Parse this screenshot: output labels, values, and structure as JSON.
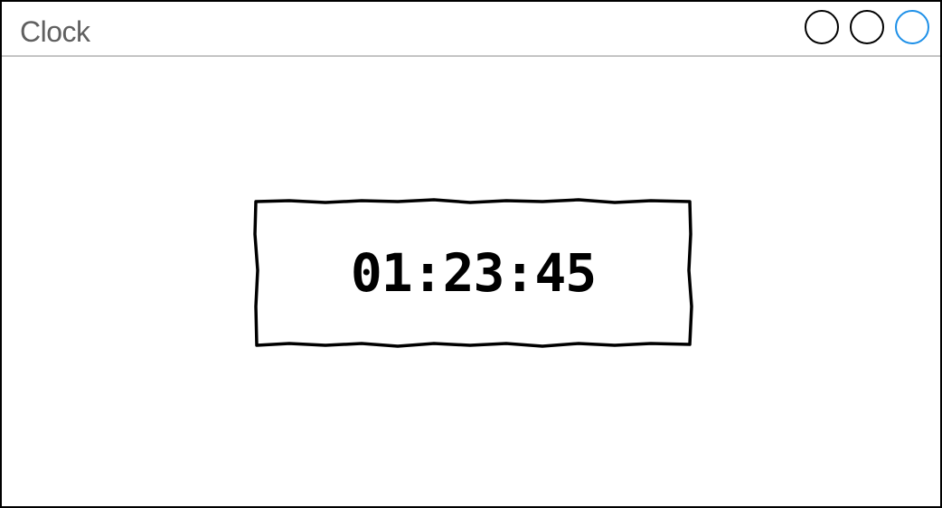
{
  "window": {
    "title": "Clock",
    "controls": [
      {
        "name": "minimize",
        "color": "#000000"
      },
      {
        "name": "maximize",
        "color": "#000000"
      },
      {
        "name": "close",
        "color": "#1e90e8"
      }
    ]
  },
  "clock": {
    "time": "01:23:45"
  },
  "colors": {
    "accent": "#1e90e8",
    "title_text": "#606060",
    "divider": "#c4c4c4"
  }
}
